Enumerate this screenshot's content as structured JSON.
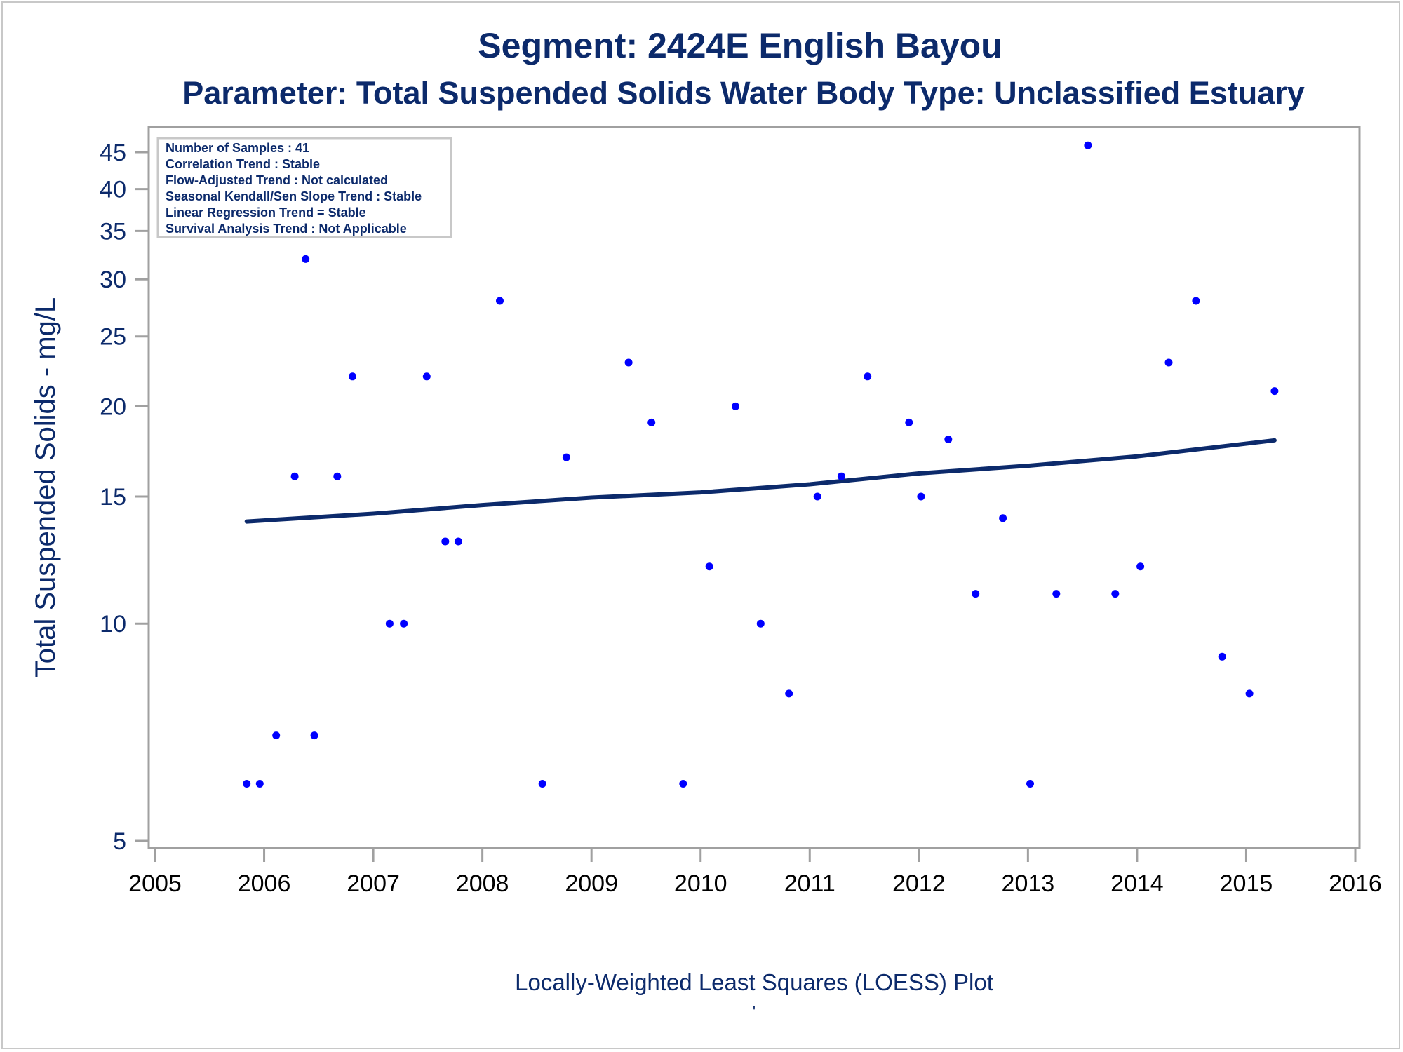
{
  "chart_data": {
    "type": "scatter",
    "title": "Segment: 2424E  English Bayou",
    "subtitle": "Parameter: Total Suspended Solids   Water Body Type: Unclassified Estuary",
    "xlabel": "Locally-Weighted Least Squares (LOESS) Plot",
    "footnote": "'",
    "ylabel": "Total Suspended Solids - mg/L",
    "y_scale": "log",
    "xlim": [
      2005,
      2016
    ],
    "ylim": [
      4.8,
      48
    ],
    "x_ticks": [
      "2005",
      "2006",
      "2007",
      "2008",
      "2009",
      "2010",
      "2011",
      "2012",
      "2013",
      "2014",
      "2015",
      "2016"
    ],
    "y_ticks": [
      5,
      10,
      15,
      20,
      25,
      30,
      35,
      40,
      45
    ],
    "grid": false,
    "legend_placement": "top-left",
    "info_box": [
      "Number of Samples : 41",
      "Correlation Trend : Stable",
      "Flow-Adjusted Trend : Not calculated",
      "Seasonal Kendall/Sen Slope Trend : Stable",
      "Linear Regression Trend = Stable",
      "Survival Analysis Trend : Not Applicable"
    ],
    "points": [
      {
        "x": 2005.84,
        "y": 6
      },
      {
        "x": 2005.96,
        "y": 6
      },
      {
        "x": 2006.11,
        "y": 7
      },
      {
        "x": 2006.28,
        "y": 16
      },
      {
        "x": 2006.38,
        "y": 32
      },
      {
        "x": 2006.46,
        "y": 7
      },
      {
        "x": 2006.67,
        "y": 16
      },
      {
        "x": 2006.81,
        "y": 22
      },
      {
        "x": 2007.15,
        "y": 10
      },
      {
        "x": 2007.28,
        "y": 10
      },
      {
        "x": 2007.49,
        "y": 22
      },
      {
        "x": 2007.66,
        "y": 13
      },
      {
        "x": 2007.78,
        "y": 13
      },
      {
        "x": 2008.16,
        "y": 28
      },
      {
        "x": 2008.55,
        "y": 6
      },
      {
        "x": 2008.77,
        "y": 17
      },
      {
        "x": 2009.34,
        "y": 23
      },
      {
        "x": 2009.55,
        "y": 19
      },
      {
        "x": 2009.84,
        "y": 6
      },
      {
        "x": 2010.08,
        "y": 12
      },
      {
        "x": 2010.32,
        "y": 20
      },
      {
        "x": 2010.55,
        "y": 10
      },
      {
        "x": 2010.81,
        "y": 8
      },
      {
        "x": 2011.07,
        "y": 15
      },
      {
        "x": 2011.29,
        "y": 16
      },
      {
        "x": 2011.53,
        "y": 22
      },
      {
        "x": 2011.91,
        "y": 19
      },
      {
        "x": 2012.02,
        "y": 15
      },
      {
        "x": 2012.27,
        "y": 18
      },
      {
        "x": 2012.52,
        "y": 11
      },
      {
        "x": 2012.77,
        "y": 14
      },
      {
        "x": 2013.02,
        "y": 6
      },
      {
        "x": 2013.26,
        "y": 11
      },
      {
        "x": 2013.55,
        "y": 46
      },
      {
        "x": 2013.8,
        "y": 11
      },
      {
        "x": 2014.03,
        "y": 12
      },
      {
        "x": 2014.29,
        "y": 23
      },
      {
        "x": 2014.54,
        "y": 28
      },
      {
        "x": 2014.78,
        "y": 9
      },
      {
        "x": 2015.03,
        "y": 8
      },
      {
        "x": 2015.26,
        "y": 21
      }
    ],
    "trend_line": {
      "x": [
        2005.84,
        2007.0,
        2008.0,
        2009.0,
        2010.0,
        2011.0,
        2012.0,
        2013.0,
        2014.0,
        2015.26
      ],
      "y": [
        13.85,
        14.2,
        14.6,
        14.95,
        15.2,
        15.6,
        16.15,
        16.55,
        17.05,
        17.95
      ]
    },
    "colors": {
      "points": "#0000ff",
      "trend_line": "#0c2a6b",
      "text": "#0c2a6b",
      "frame": "#a0a0a0"
    }
  }
}
